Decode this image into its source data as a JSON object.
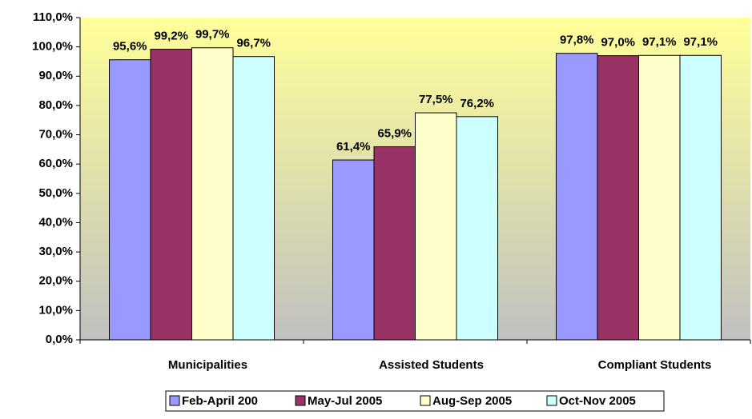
{
  "chart_data": {
    "type": "bar",
    "categories": [
      "Municipalities",
      "Assisted Students",
      "Compliant Students"
    ],
    "series": [
      {
        "name": "Feb-April 200",
        "color": "#9999ff",
        "values": [
          95.6,
          61.4,
          97.8
        ],
        "value_labels": [
          "95,6%",
          "61,4%",
          "97,8%"
        ]
      },
      {
        "name": "May-Jul 2005",
        "color": "#993366",
        "values": [
          99.2,
          65.9,
          97.0
        ],
        "value_labels": [
          "99,2%",
          "65,9%",
          "97,0%"
        ]
      },
      {
        "name": "Aug-Sep 2005",
        "color": "#ffffcc",
        "values": [
          99.7,
          77.5,
          97.1
        ],
        "value_labels": [
          "99,7%",
          "77,5%",
          "97,1%"
        ]
      },
      {
        "name": "Oct-Nov 2005",
        "color": "#ccffff",
        "values": [
          96.7,
          76.2,
          97.1
        ],
        "value_labels": [
          "96,7%",
          "76,2%",
          "97,1%"
        ]
      }
    ],
    "ylim": [
      0,
      110
    ],
    "yticks": [
      {
        "value": 0,
        "label": "0,0%"
      },
      {
        "value": 10,
        "label": "10,0%"
      },
      {
        "value": 20,
        "label": "20,0%"
      },
      {
        "value": 30,
        "label": "30,0%"
      },
      {
        "value": 40,
        "label": "40,0%"
      },
      {
        "value": 50,
        "label": "50,0%"
      },
      {
        "value": 60,
        "label": "60,0%"
      },
      {
        "value": 70,
        "label": "70,0%"
      },
      {
        "value": 80,
        "label": "80,0%"
      },
      {
        "value": 90,
        "label": "90,0%"
      },
      {
        "value": 100,
        "label": "100,0%"
      },
      {
        "value": 110,
        "label": "110,0%"
      }
    ],
    "legend": "bottom"
  }
}
